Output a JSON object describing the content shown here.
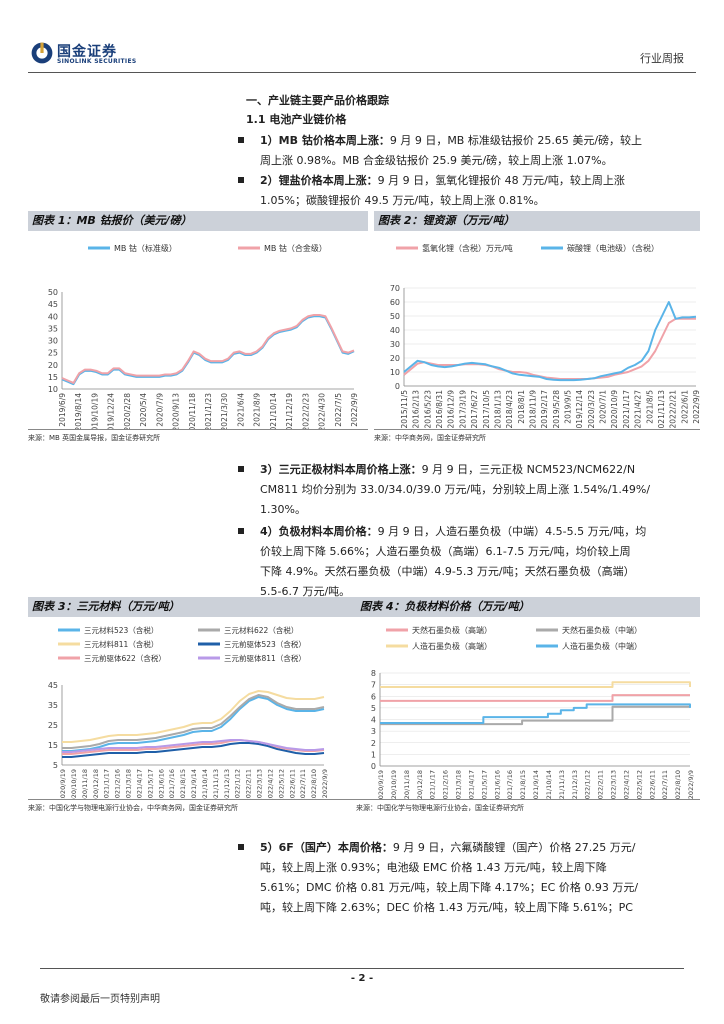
{
  "header": {
    "logo_cn": "国金证券",
    "logo_en": "SINOLINK SECURITIES",
    "report_type": "行业周报"
  },
  "section": {
    "title": "一、产业链主要产品价格跟踪",
    "subtitle": "1.1 电池产业链价格"
  },
  "bullets": [
    {
      "head": "1）MB 钴价格本周上涨：",
      "lines": [
        "9 月 9 日，MB 标准级钴报价 25.65 美元/磅，较上",
        "周上涨 0.98%。MB 合金级钴报价 25.9 美元/磅，较上周上涨 1.07%。"
      ]
    },
    {
      "head": "2）锂盐价格本周上涨：",
      "lines": [
        "9 月 9 日，氢氧化锂报价 48 万元/吨，较上周上涨",
        "1.05%；碳酸锂报价 49.5 万元/吨，较上周上涨 0.81%。"
      ]
    },
    {
      "head": "3）三元正极材料本周价格上涨：",
      "lines": [
        "9 月 9 日，三元正极 NCM523/NCM622/N",
        "CM811 均价分别为 33.0/34.0/39.0 万元/吨，分别较上周上涨 1.54%/1.49%/",
        "1.30%。"
      ]
    },
    {
      "head": "4）负极材料本周价格：",
      "lines": [
        "9 月 9 日，人造石墨负极（中端）4.5-5.5 万元/吨，均",
        "价较上周下降 5.66%；人造石墨负极（高端）6.1-7.5 万元/吨，均价较上周",
        "下降 4.9%。天然石墨负极（中端）4.9-5.3 万元/吨；天然石墨负极（高端）",
        "5.5-6.7 万元/吨。"
      ]
    },
    {
      "head": "5）6F（国产）本周价格：",
      "lines": [
        "9 月 9 日，六氟磷酸锂（国产）价格 27.25 万元/",
        "吨，较上周上涨 0.93%；电池级 EMC 价格 1.43 万元/吨，较上周下降",
        "5.61%；DMC 价格 0.81 万元/吨，较上周下降 4.17%；EC 价格 0.93 万元/",
        "吨，较上周下降 2.63%；DEC 价格 1.43 万元/吨，较上周下降 5.61%；PC"
      ]
    }
  ],
  "footer": {
    "page": "- 2 -",
    "note": "敬请参阅最后一页特别声明"
  },
  "chart_data": [
    {
      "id": "c1",
      "type": "line",
      "title": "图表 1：MB 钴报价（美元/磅）",
      "source": "来源：MB 英国金属导报，国金证券研究所",
      "ylim": [
        10,
        50
      ],
      "yticks": [
        10,
        15,
        20,
        25,
        30,
        35,
        40,
        45,
        50
      ],
      "x_labels": [
        "2019/6/9",
        "2019/8/14",
        "2019/10/19",
        "2019/12/24",
        "2020/2/28",
        "2020/5/4",
        "2020/7/9",
        "2020/9/13",
        "2020/11/18",
        "2021/1/23",
        "2021/3/30",
        "2021/6/4",
        "2021/8/9",
        "2021/10/14",
        "2021/12/19",
        "2022/2/23",
        "2022/4/30",
        "2022/7/5",
        "2022/9/9"
      ],
      "series": [
        {
          "name": "MB 钴（标准级）",
          "color": "#5ab4e8",
          "values": [
            14,
            13,
            12,
            16,
            17.5,
            17.5,
            17,
            16,
            16,
            18,
            18,
            16,
            15.5,
            15,
            15,
            15,
            15,
            15,
            15.5,
            15.5,
            16,
            17.5,
            21,
            25,
            24,
            22,
            21,
            21,
            21,
            22,
            24.5,
            25,
            24,
            24,
            25,
            27,
            30.5,
            32.5,
            33.5,
            34,
            34.5,
            35.5,
            38,
            39.5,
            40,
            40,
            39.5,
            35,
            30,
            25,
            24.5,
            25.6
          ]
        },
        {
          "name": "MB 钴（合金级）",
          "color": "#f0a2a8",
          "values": [
            14.5,
            13.5,
            12.5,
            16.5,
            18,
            18,
            17.5,
            16.5,
            16.5,
            18.5,
            18.5,
            16.5,
            16,
            15.5,
            15.5,
            15.5,
            15.5,
            15.5,
            16,
            16,
            16.5,
            18,
            21.5,
            25.5,
            24.5,
            22.5,
            21.5,
            21.5,
            21.5,
            22.5,
            25,
            25.5,
            24.5,
            24.5,
            25.5,
            27.5,
            31,
            33,
            34,
            34.5,
            35,
            36,
            38.5,
            40,
            40.5,
            40.5,
            40,
            35.5,
            30.5,
            25.5,
            25,
            25.9
          ]
        }
      ]
    },
    {
      "id": "c2",
      "type": "line",
      "title": "图表 2：锂资源（万元/吨）",
      "source": "来源：中华商务网，国金证券研究所",
      "ylim": [
        0,
        70
      ],
      "yticks": [
        0,
        10,
        20,
        30,
        40,
        50,
        60,
        70
      ],
      "x_labels": [
        "2015/11/5",
        "2016/2/13",
        "2016/5/23",
        "2016/8/31",
        "2016/12/9",
        "2017/3/19",
        "2017/6/27",
        "2017/10/5",
        "2018/1/13",
        "2018/4/23",
        "2018/8/1",
        "2018/11/9",
        "2019/2/17",
        "2019/5/28",
        "2019/9/5",
        "2019/12/14",
        "2020/3/23",
        "2020/7/1",
        "2020/10/9",
        "2021/1/17",
        "2021/4/27",
        "2021/8/5",
        "2021/11/13",
        "2022/2/21",
        "2022/6/1",
        "2022/9/9"
      ],
      "series": [
        {
          "name": "氢氧化锂（含税）万元/吨",
          "color": "#f0a2a8",
          "values": [
            8,
            12,
            16,
            17,
            16,
            15,
            15,
            15,
            15,
            15.5,
            15.5,
            15.5,
            15,
            14,
            12,
            11,
            10,
            10,
            9.5,
            8,
            7,
            6,
            5.5,
            5,
            5,
            5,
            5,
            5,
            5.5,
            6,
            6.5,
            8,
            9,
            10,
            12,
            14,
            18,
            25,
            35,
            45,
            48,
            48,
            48,
            48
          ]
        },
        {
          "name": "碳酸锂（电池级）（含税）",
          "color": "#5ab4e8",
          "values": [
            10,
            14,
            18,
            17,
            15,
            14,
            13.5,
            14,
            15,
            16,
            16.5,
            16,
            15.5,
            14,
            13,
            11,
            9,
            8,
            7.5,
            7,
            6.5,
            5,
            4.5,
            4.2,
            4.2,
            4.2,
            4.5,
            5,
            5.5,
            7,
            8,
            9,
            10,
            13,
            15,
            18,
            25,
            40,
            50,
            60,
            48,
            49,
            49,
            49.5
          ]
        }
      ]
    },
    {
      "id": "c3",
      "type": "line",
      "title": "图表 3：三元材料（万元/吨）",
      "source": "来源：中国化学与物理电源行业协会，中华商务网，国金证券研究所",
      "ylim": [
        5,
        45
      ],
      "yticks": [
        5,
        15,
        25,
        35,
        45
      ],
      "x_labels": [
        "2020/9/19",
        "2020/10/19",
        "2020/11/18",
        "2020/12/18",
        "2021/1/17",
        "2021/2/16",
        "2021/3/18",
        "2021/4/17",
        "2021/5/17",
        "2021/6/16",
        "2021/7/16",
        "2021/8/15",
        "2021/9/14",
        "2021/10/14",
        "2021/11/13",
        "2021/12/13",
        "2022/1/12",
        "2022/2/11",
        "2022/3/13",
        "2022/4/12",
        "2022/5/12",
        "2022/6/11",
        "2022/7/11",
        "2022/8/10",
        "2022/9/9"
      ],
      "series": [
        {
          "name": "三元材料523（含税）",
          "color": "#5ab4e8",
          "values": [
            12,
            12,
            12.5,
            13,
            14,
            15.5,
            16,
            16,
            16,
            16.5,
            17,
            18,
            19,
            20,
            21.5,
            22,
            22,
            24,
            28,
            33,
            37,
            39,
            38,
            35,
            33,
            32,
            32,
            32,
            33
          ]
        },
        {
          "name": "三元材料622（含税）",
          "color": "#aaaaaa",
          "values": [
            13.5,
            13.5,
            14,
            14.5,
            15.5,
            17,
            17.5,
            17.5,
            17.5,
            18,
            18.5,
            19.5,
            20.5,
            21.5,
            23,
            23.5,
            23.5,
            25.5,
            29.5,
            34,
            38,
            40,
            39,
            36,
            34,
            33,
            33,
            33,
            34
          ]
        },
        {
          "name": "三元材料811（含税）",
          "color": "#f5dca0",
          "values": [
            16.5,
            16.5,
            17,
            17.5,
            18.5,
            19.5,
            20,
            20,
            20,
            20.5,
            21,
            22,
            23,
            24,
            25.5,
            26,
            26,
            28,
            32,
            37,
            40.5,
            42,
            41.5,
            40,
            38.5,
            38,
            38,
            38,
            39
          ]
        },
        {
          "name": "三元前驱体523（含税）",
          "color": "#1f5fa8",
          "values": [
            9,
            9,
            9.5,
            10,
            10.5,
            11,
            11,
            11,
            11,
            11.5,
            11.5,
            12,
            12.5,
            13,
            13.5,
            14,
            14,
            14.5,
            15.5,
            16,
            16,
            15.5,
            14.5,
            13,
            12,
            11,
            10.5,
            10.5,
            11
          ]
        },
        {
          "name": "三元前驱体622（含税）",
          "color": "#f0a2a8",
          "values": [
            10.5,
            10.5,
            11,
            11.5,
            12,
            12.5,
            12.5,
            12.5,
            12.5,
            13,
            13,
            13.5,
            14,
            14.5,
            15,
            15.5,
            15.5,
            16,
            17,
            17.5,
            17,
            16.5,
            15.5,
            14,
            13,
            12.5,
            12,
            12,
            12.5
          ]
        },
        {
          "name": "三元前驱体811（含税）",
          "color": "#b89ae8",
          "values": [
            11.5,
            11.5,
            12,
            12.5,
            13,
            13.5,
            13.5,
            13.5,
            13.5,
            14,
            14,
            14.5,
            15,
            15.5,
            16,
            16.5,
            16.5,
            17,
            17.5,
            17.5,
            17,
            16.5,
            15.5,
            14.5,
            13.5,
            13,
            12.5,
            12.5,
            13
          ]
        }
      ]
    },
    {
      "id": "c4",
      "type": "line",
      "title": "图表 4：负极材料价格（万元/吨）",
      "source": "来源：中国化学与物理电源行业协会，国金证券研究所",
      "ylim": [
        0,
        8
      ],
      "yticks": [
        0,
        1,
        2,
        3,
        4,
        5,
        6,
        7,
        8
      ],
      "x_labels": [
        "2020/9/19",
        "2020/10/19",
        "2020/11/18",
        "2020/12/18",
        "2021/1/17",
        "2021/2/16",
        "2021/3/18",
        "2021/4/17",
        "2021/5/17",
        "2021/6/16",
        "2021/7/16",
        "2021/8/15",
        "2021/9/14",
        "2021/10/14",
        "2021/11/13",
        "2021/12/13",
        "2022/1/12",
        "2022/2/11",
        "2022/3/13",
        "2022/4/12",
        "2022/5/12",
        "2022/6/11",
        "2022/7/11",
        "2022/8/10",
        "2022/9/9"
      ],
      "series": [
        {
          "name": "天然石墨负极（高端）",
          "color": "#f0a2a8",
          "values": [
            5.6,
            5.6,
            5.6,
            5.6,
            5.6,
            5.6,
            5.6,
            5.6,
            5.6,
            5.6,
            5.6,
            5.6,
            5.6,
            5.6,
            5.6,
            5.6,
            5.6,
            5.6,
            6.1,
            6.1,
            6.1,
            6.1,
            6.1,
            6.1,
            6.1
          ]
        },
        {
          "name": "天然石墨负极（中端）",
          "color": "#aaaaaa",
          "values": [
            3.6,
            3.6,
            3.6,
            3.6,
            3.6,
            3.6,
            3.6,
            3.6,
            3.6,
            3.6,
            3.6,
            3.9,
            3.9,
            3.9,
            3.9,
            3.9,
            3.9,
            3.9,
            5.1,
            5.1,
            5.1,
            5.1,
            5.1,
            5.1,
            5.1
          ]
        },
        {
          "name": "人造石墨负极（高端）",
          "color": "#f5dca0",
          "values": [
            6.8,
            6.8,
            6.8,
            6.8,
            6.8,
            6.8,
            6.8,
            6.8,
            6.8,
            6.8,
            6.8,
            6.8,
            6.8,
            6.8,
            6.8,
            6.8,
            6.8,
            6.8,
            7.2,
            7.2,
            7.2,
            7.2,
            7.2,
            7.2,
            6.8
          ]
        },
        {
          "name": "人造石墨负极（中端）",
          "color": "#5ab4e8",
          "values": [
            3.7,
            3.7,
            3.7,
            3.7,
            3.7,
            3.7,
            3.7,
            3.7,
            4.2,
            4.2,
            4.2,
            4.2,
            4.2,
            4.5,
            4.8,
            5.0,
            5.3,
            5.3,
            5.3,
            5.3,
            5.3,
            5.3,
            5.3,
            5.3,
            5.0
          ]
        }
      ]
    }
  ]
}
